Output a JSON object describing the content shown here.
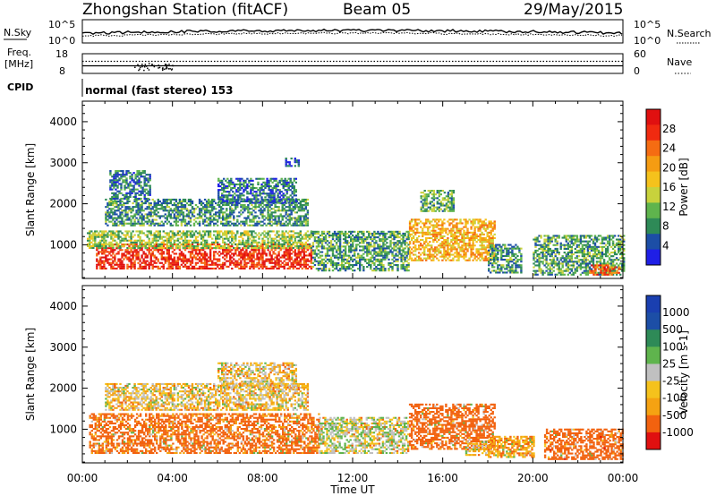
{
  "header": {
    "station": "Zhongshan Station (fitACF)",
    "beam": "Beam 05",
    "date": "29/May/2015"
  },
  "strip": {
    "nsky_label": "N.Sky",
    "nsky_ticks": [
      "10^5",
      "10^0"
    ],
    "nsearch_label": "N.Search",
    "nsearch_ticks": [
      "10^5",
      "10^0"
    ],
    "freq_label_1": "Freq.",
    "freq_label_2": "[MHz]",
    "freq_ticks": [
      "18",
      "8"
    ],
    "nave_label": "Nave",
    "nave_ticks": [
      "60",
      "0"
    ],
    "cpid_label": "CPID",
    "cpid_text": "normal (fast stereo) 153"
  },
  "colors": {
    "power": [
      "#1f1fe6",
      "#1c4ea6",
      "#2e8a57",
      "#5fb44d",
      "#c8d23c",
      "#f5c21c",
      "#f59c12",
      "#f56c12",
      "#f02a10",
      "#e01010"
    ],
    "velocity": [
      "#e01010",
      "#f2620f",
      "#f5a212",
      "#f5c21c",
      "#c0c0c0",
      "#5fb44d",
      "#2e8a57",
      "#1c4ea6",
      "#1a3fb0"
    ]
  },
  "chart_data": [
    {
      "type": "heatmap",
      "name": "power",
      "xlabel": "Time UT",
      "ylabel": "Slant Range [km]",
      "x_ticks": [
        "00:00",
        "04:00",
        "08:00",
        "12:00",
        "16:00",
        "20:00",
        "00:00"
      ],
      "y_ticks": [
        "1000",
        "2000",
        "3000",
        "4000"
      ],
      "colorbar_label": "Power [dB]",
      "colorbar_ticks": [
        "4",
        "8",
        "12",
        "16",
        "20",
        "24",
        "28"
      ],
      "xlim": [
        0,
        24
      ],
      "ylim": [
        180,
        4500
      ],
      "zlim": [
        0,
        30
      ],
      "regions": [
        {
          "t": [
            0.6,
            10.2
          ],
          "r": [
            400,
            1000
          ],
          "z": 26
        },
        {
          "t": [
            0.2,
            10.2
          ],
          "r": [
            900,
            1350
          ],
          "z": 12
        },
        {
          "t": [
            1.0,
            10.0
          ],
          "r": [
            1450,
            2100
          ],
          "z": 8
        },
        {
          "t": [
            1.2,
            3.0
          ],
          "r": [
            2100,
            2800
          ],
          "z": 6
        },
        {
          "t": [
            6.0,
            9.5
          ],
          "r": [
            2000,
            2600
          ],
          "z": 6
        },
        {
          "t": [
            9.0,
            9.6
          ],
          "r": [
            2900,
            3100
          ],
          "z": 4
        },
        {
          "t": [
            10.2,
            14.5
          ],
          "r": [
            350,
            1300
          ],
          "z": 9
        },
        {
          "t": [
            14.5,
            18.3
          ],
          "r": [
            600,
            1600
          ],
          "z": 18
        },
        {
          "t": [
            15.0,
            16.5
          ],
          "r": [
            1800,
            2300
          ],
          "z": 10
        },
        {
          "t": [
            18.0,
            19.5
          ],
          "r": [
            300,
            1000
          ],
          "z": 8
        },
        {
          "t": [
            20.0,
            24.0
          ],
          "r": [
            250,
            1200
          ],
          "z": 9
        },
        {
          "t": [
            22.5,
            23.8
          ],
          "r": [
            250,
            500
          ],
          "z": 24
        }
      ]
    },
    {
      "type": "heatmap",
      "name": "velocity",
      "xlabel": "Time UT",
      "ylabel": "Slant Range [km]",
      "x_ticks": [
        "00:00",
        "04:00",
        "08:00",
        "12:00",
        "16:00",
        "20:00",
        "00:00"
      ],
      "y_ticks": [
        "1000",
        "2000",
        "3000",
        "4000"
      ],
      "colorbar_label": "Velocity [m s-1]",
      "colorbar_ticks": [
        "1000",
        "500",
        "100",
        "25",
        "-25",
        "-100",
        "-500",
        "-1000"
      ],
      "xlim": [
        0,
        24
      ],
      "ylim": [
        180,
        4500
      ],
      "zlim": [
        -1200,
        1200
      ],
      "regions": [
        {
          "t": [
            0.3,
            10.5
          ],
          "r": [
            400,
            1350
          ],
          "z": -150
        },
        {
          "t": [
            1.0,
            10.0
          ],
          "r": [
            1450,
            2100
          ],
          "z": 0
        },
        {
          "t": [
            6.0,
            9.5
          ],
          "r": [
            2000,
            2600
          ],
          "z": 10
        },
        {
          "t": [
            10.5,
            14.5
          ],
          "r": [
            400,
            1300
          ],
          "z": 60
        },
        {
          "t": [
            14.5,
            18.3
          ],
          "r": [
            500,
            1600
          ],
          "z": -180
        },
        {
          "t": [
            17.0,
            18.0
          ],
          "r": [
            350,
            700
          ],
          "z": 0
        },
        {
          "t": [
            18.0,
            20.0
          ],
          "r": [
            300,
            800
          ],
          "z": -60
        },
        {
          "t": [
            20.5,
            24.0
          ],
          "r": [
            250,
            1000
          ],
          "z": -200
        }
      ]
    }
  ]
}
